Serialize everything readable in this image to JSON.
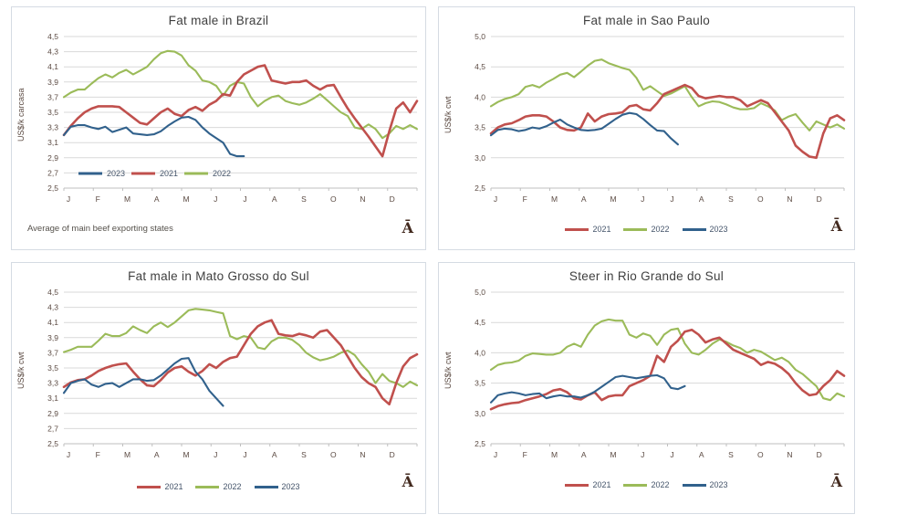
{
  "page": {
    "background": "#FFFFFF"
  },
  "colors": {
    "series_2021": "#C0504D",
    "series_2022": "#9BBB59",
    "series_2023": "#31618C",
    "gridline": "#D9D9D9",
    "axis_line": "#BFBFBF",
    "axis_text": "#5B4A42",
    "legend_text": "#44546A",
    "title_text": "#3F3F3F",
    "footnote_text": "#55514B",
    "watermark_text": "#42291E",
    "panel_border": "#D5DBE3"
  },
  "chart_data": [
    {
      "type": "line",
      "title": "Fat male in Brazil",
      "ylabel": "US$/k carcasa",
      "footnote": "Average  of main beef exporting states",
      "watermark": "Ā",
      "ylim": [
        2.5,
        4.5
      ],
      "ytick_labels": [
        "2,5",
        "2,7",
        "2,9",
        "3,1",
        "3,3",
        "3,5",
        "3,7",
        "3,9",
        "4,1",
        "4,3",
        "4,5"
      ],
      "x_categories": [
        "J",
        "F",
        "M",
        "A",
        "M",
        "J",
        "J",
        "A",
        "S",
        "O",
        "N",
        "D"
      ],
      "x_unit": "weekly points, Jan-Dec",
      "grid": true,
      "legend_position": "inside",
      "legend_order": [
        "2023",
        "2021",
        "2022"
      ],
      "series": [
        {
          "name": "2021",
          "color": "#C0504D",
          "values": [
            3.2,
            3.32,
            3.42,
            3.5,
            3.55,
            3.58,
            3.58,
            3.58,
            3.57,
            3.5,
            3.43,
            3.36,
            3.34,
            3.42,
            3.5,
            3.55,
            3.48,
            3.45,
            3.53,
            3.57,
            3.52,
            3.6,
            3.65,
            3.74,
            3.72,
            3.9,
            4.0,
            4.05,
            4.1,
            4.12,
            3.92,
            3.9,
            3.88,
            3.9,
            3.9,
            3.92,
            3.85,
            3.8,
            3.85,
            3.86,
            3.7,
            3.55,
            3.42,
            3.3,
            3.18,
            3.05,
            2.92,
            3.25,
            3.55,
            3.63,
            3.5,
            3.65
          ]
        },
        {
          "name": "2022",
          "color": "#9BBB59",
          "values": [
            3.7,
            3.76,
            3.8,
            3.8,
            3.88,
            3.95,
            4.0,
            3.96,
            4.02,
            4.06,
            4.0,
            4.05,
            4.1,
            4.2,
            4.28,
            4.31,
            4.3,
            4.25,
            4.12,
            4.05,
            3.92,
            3.9,
            3.85,
            3.72,
            3.85,
            3.9,
            3.88,
            3.7,
            3.58,
            3.65,
            3.7,
            3.72,
            3.65,
            3.62,
            3.6,
            3.63,
            3.68,
            3.74,
            3.66,
            3.58,
            3.5,
            3.45,
            3.3,
            3.28,
            3.34,
            3.28,
            3.16,
            3.22,
            3.32,
            3.28,
            3.33,
            3.28
          ]
        },
        {
          "name": "2023",
          "color": "#31618C",
          "values": [
            3.2,
            3.31,
            3.33,
            3.33,
            3.3,
            3.28,
            3.31,
            3.24,
            3.27,
            3.3,
            3.22,
            3.21,
            3.2,
            3.21,
            3.25,
            3.32,
            3.38,
            3.43,
            3.44,
            3.4,
            3.3,
            3.22,
            3.16,
            3.1,
            2.95,
            2.92,
            2.92
          ]
        }
      ]
    },
    {
      "type": "line",
      "title": "Fat male in Sao Paulo",
      "ylabel": "US$/k cwt",
      "watermark": "Ā",
      "ylim": [
        2.5,
        5.0
      ],
      "ytick_labels": [
        "2,5",
        "3,0",
        "3,5",
        "4,0",
        "4,5",
        "5,0"
      ],
      "x_categories": [
        "J",
        "F",
        "M",
        "A",
        "M",
        "J",
        "J",
        "A",
        "S",
        "O",
        "N",
        "D"
      ],
      "x_unit": "weekly points, Jan-Dec",
      "grid": true,
      "legend_position": "below",
      "legend_order": [
        "2021",
        "2022",
        "2023"
      ],
      "series": [
        {
          "name": "2021",
          "color": "#C0504D",
          "values": [
            3.4,
            3.5,
            3.55,
            3.57,
            3.62,
            3.68,
            3.7,
            3.7,
            3.68,
            3.6,
            3.5,
            3.46,
            3.45,
            3.5,
            3.73,
            3.6,
            3.68,
            3.72,
            3.73,
            3.75,
            3.85,
            3.87,
            3.8,
            3.78,
            3.9,
            4.05,
            4.1,
            4.15,
            4.2,
            4.15,
            4.02,
            3.98,
            4.0,
            4.02,
            4.0,
            4.0,
            3.95,
            3.85,
            3.9,
            3.95,
            3.9,
            3.75,
            3.6,
            3.45,
            3.2,
            3.1,
            3.02,
            3.0,
            3.4,
            3.65,
            3.7,
            3.62
          ]
        },
        {
          "name": "2022",
          "color": "#9BBB59",
          "values": [
            3.85,
            3.92,
            3.97,
            4.0,
            4.05,
            4.17,
            4.2,
            4.16,
            4.24,
            4.3,
            4.37,
            4.4,
            4.33,
            4.42,
            4.52,
            4.6,
            4.62,
            4.56,
            4.52,
            4.48,
            4.45,
            4.32,
            4.12,
            4.18,
            4.1,
            4.02,
            4.06,
            4.12,
            4.18,
            4.0,
            3.85,
            3.9,
            3.93,
            3.92,
            3.88,
            3.83,
            3.8,
            3.8,
            3.82,
            3.9,
            3.85,
            3.78,
            3.62,
            3.68,
            3.72,
            3.58,
            3.45,
            3.6,
            3.55,
            3.5,
            3.55,
            3.48
          ]
        },
        {
          "name": "2023",
          "color": "#31618C",
          "values": [
            3.37,
            3.46,
            3.48,
            3.47,
            3.44,
            3.46,
            3.5,
            3.48,
            3.52,
            3.58,
            3.63,
            3.55,
            3.5,
            3.46,
            3.45,
            3.46,
            3.48,
            3.56,
            3.64,
            3.71,
            3.74,
            3.72,
            3.64,
            3.54,
            3.45,
            3.44,
            3.32,
            3.22
          ]
        }
      ]
    },
    {
      "type": "line",
      "title": "Fat male in Mato Grosso do Sul",
      "ylabel": "US$/k cwt",
      "watermark": "Ā",
      "ylim": [
        2.5,
        4.5
      ],
      "ytick_labels": [
        "2,5",
        "2,7",
        "2,9",
        "3,1",
        "3,3",
        "3,5",
        "3,7",
        "3,9",
        "4,1",
        "4,3",
        "4,5"
      ],
      "x_categories": [
        "J",
        "F",
        "M",
        "A",
        "M",
        "J",
        "J",
        "A",
        "S",
        "O",
        "N",
        "D"
      ],
      "x_unit": "weekly points, Jan-Dec",
      "grid": true,
      "legend_position": "below",
      "legend_order": [
        "2021",
        "2022",
        "2023"
      ],
      "series": [
        {
          "name": "2021",
          "color": "#C0504D",
          "values": [
            3.25,
            3.31,
            3.34,
            3.35,
            3.4,
            3.46,
            3.5,
            3.53,
            3.55,
            3.56,
            3.45,
            3.35,
            3.27,
            3.26,
            3.34,
            3.44,
            3.5,
            3.52,
            3.45,
            3.4,
            3.46,
            3.55,
            3.5,
            3.58,
            3.63,
            3.65,
            3.8,
            3.95,
            4.05,
            4.1,
            4.13,
            3.95,
            3.93,
            3.92,
            3.95,
            3.93,
            3.9,
            3.98,
            4.0,
            3.9,
            3.8,
            3.65,
            3.5,
            3.38,
            3.3,
            3.25,
            3.1,
            3.02,
            3.3,
            3.52,
            3.63,
            3.68
          ]
        },
        {
          "name": "2022",
          "color": "#9BBB59",
          "values": [
            3.71,
            3.74,
            3.78,
            3.78,
            3.78,
            3.86,
            3.95,
            3.92,
            3.92,
            3.96,
            4.05,
            4.0,
            3.96,
            4.05,
            4.1,
            4.04,
            4.1,
            4.18,
            4.26,
            4.28,
            4.27,
            4.26,
            4.24,
            4.22,
            3.92,
            3.88,
            3.92,
            3.9,
            3.77,
            3.75,
            3.85,
            3.9,
            3.9,
            3.87,
            3.8,
            3.7,
            3.64,
            3.6,
            3.62,
            3.65,
            3.7,
            3.73,
            3.67,
            3.55,
            3.45,
            3.3,
            3.42,
            3.33,
            3.3,
            3.25,
            3.32,
            3.27
          ]
        },
        {
          "name": "2023",
          "color": "#31618C",
          "values": [
            3.17,
            3.3,
            3.33,
            3.35,
            3.28,
            3.25,
            3.29,
            3.3,
            3.25,
            3.3,
            3.35,
            3.35,
            3.33,
            3.34,
            3.4,
            3.48,
            3.56,
            3.62,
            3.63,
            3.45,
            3.35,
            3.2,
            3.1,
            3.0
          ]
        }
      ]
    },
    {
      "type": "line",
      "title": "Steer in Rio Grande do Sul",
      "ylabel": "US$/k cwt",
      "watermark": "Ā",
      "ylim": [
        2.5,
        5.0
      ],
      "ytick_labels": [
        "2,5",
        "3,0",
        "3,5",
        "4,0",
        "4,5",
        "5,0"
      ],
      "x_categories": [
        "J",
        "F",
        "M",
        "A",
        "M",
        "J",
        "J",
        "A",
        "S",
        "O",
        "N",
        "D"
      ],
      "x_unit": "weekly points, Jan-Dec",
      "grid": true,
      "legend_position": "below",
      "legend_order": [
        "2021",
        "2022",
        "2023"
      ],
      "series": [
        {
          "name": "2021",
          "color": "#C0504D",
          "values": [
            3.07,
            3.12,
            3.15,
            3.17,
            3.18,
            3.22,
            3.25,
            3.28,
            3.32,
            3.38,
            3.4,
            3.35,
            3.25,
            3.23,
            3.3,
            3.35,
            3.22,
            3.28,
            3.3,
            3.3,
            3.45,
            3.5,
            3.55,
            3.62,
            3.95,
            3.85,
            4.1,
            4.2,
            4.35,
            4.38,
            4.3,
            4.17,
            4.22,
            4.25,
            4.15,
            4.05,
            4.0,
            3.95,
            3.9,
            3.8,
            3.85,
            3.82,
            3.75,
            3.65,
            3.5,
            3.38,
            3.3,
            3.32,
            3.45,
            3.55,
            3.7,
            3.62
          ]
        },
        {
          "name": "2022",
          "color": "#9BBB59",
          "values": [
            3.72,
            3.8,
            3.83,
            3.84,
            3.87,
            3.95,
            3.99,
            3.98,
            3.97,
            3.97,
            4.0,
            4.1,
            4.15,
            4.1,
            4.3,
            4.45,
            4.52,
            4.55,
            4.53,
            4.53,
            4.3,
            4.25,
            4.32,
            4.28,
            4.13,
            4.3,
            4.38,
            4.4,
            4.15,
            4.0,
            3.97,
            4.05,
            4.15,
            4.22,
            4.18,
            4.12,
            4.08,
            4.0,
            4.05,
            4.02,
            3.95,
            3.88,
            3.92,
            3.85,
            3.72,
            3.65,
            3.55,
            3.45,
            3.25,
            3.22,
            3.33,
            3.28
          ]
        },
        {
          "name": "2023",
          "color": "#31618C",
          "values": [
            3.18,
            3.3,
            3.33,
            3.35,
            3.33,
            3.3,
            3.32,
            3.33,
            3.25,
            3.28,
            3.3,
            3.28,
            3.28,
            3.26,
            3.3,
            3.36,
            3.44,
            3.52,
            3.6,
            3.62,
            3.6,
            3.58,
            3.6,
            3.62,
            3.63,
            3.58,
            3.42,
            3.4,
            3.45
          ]
        }
      ]
    }
  ]
}
